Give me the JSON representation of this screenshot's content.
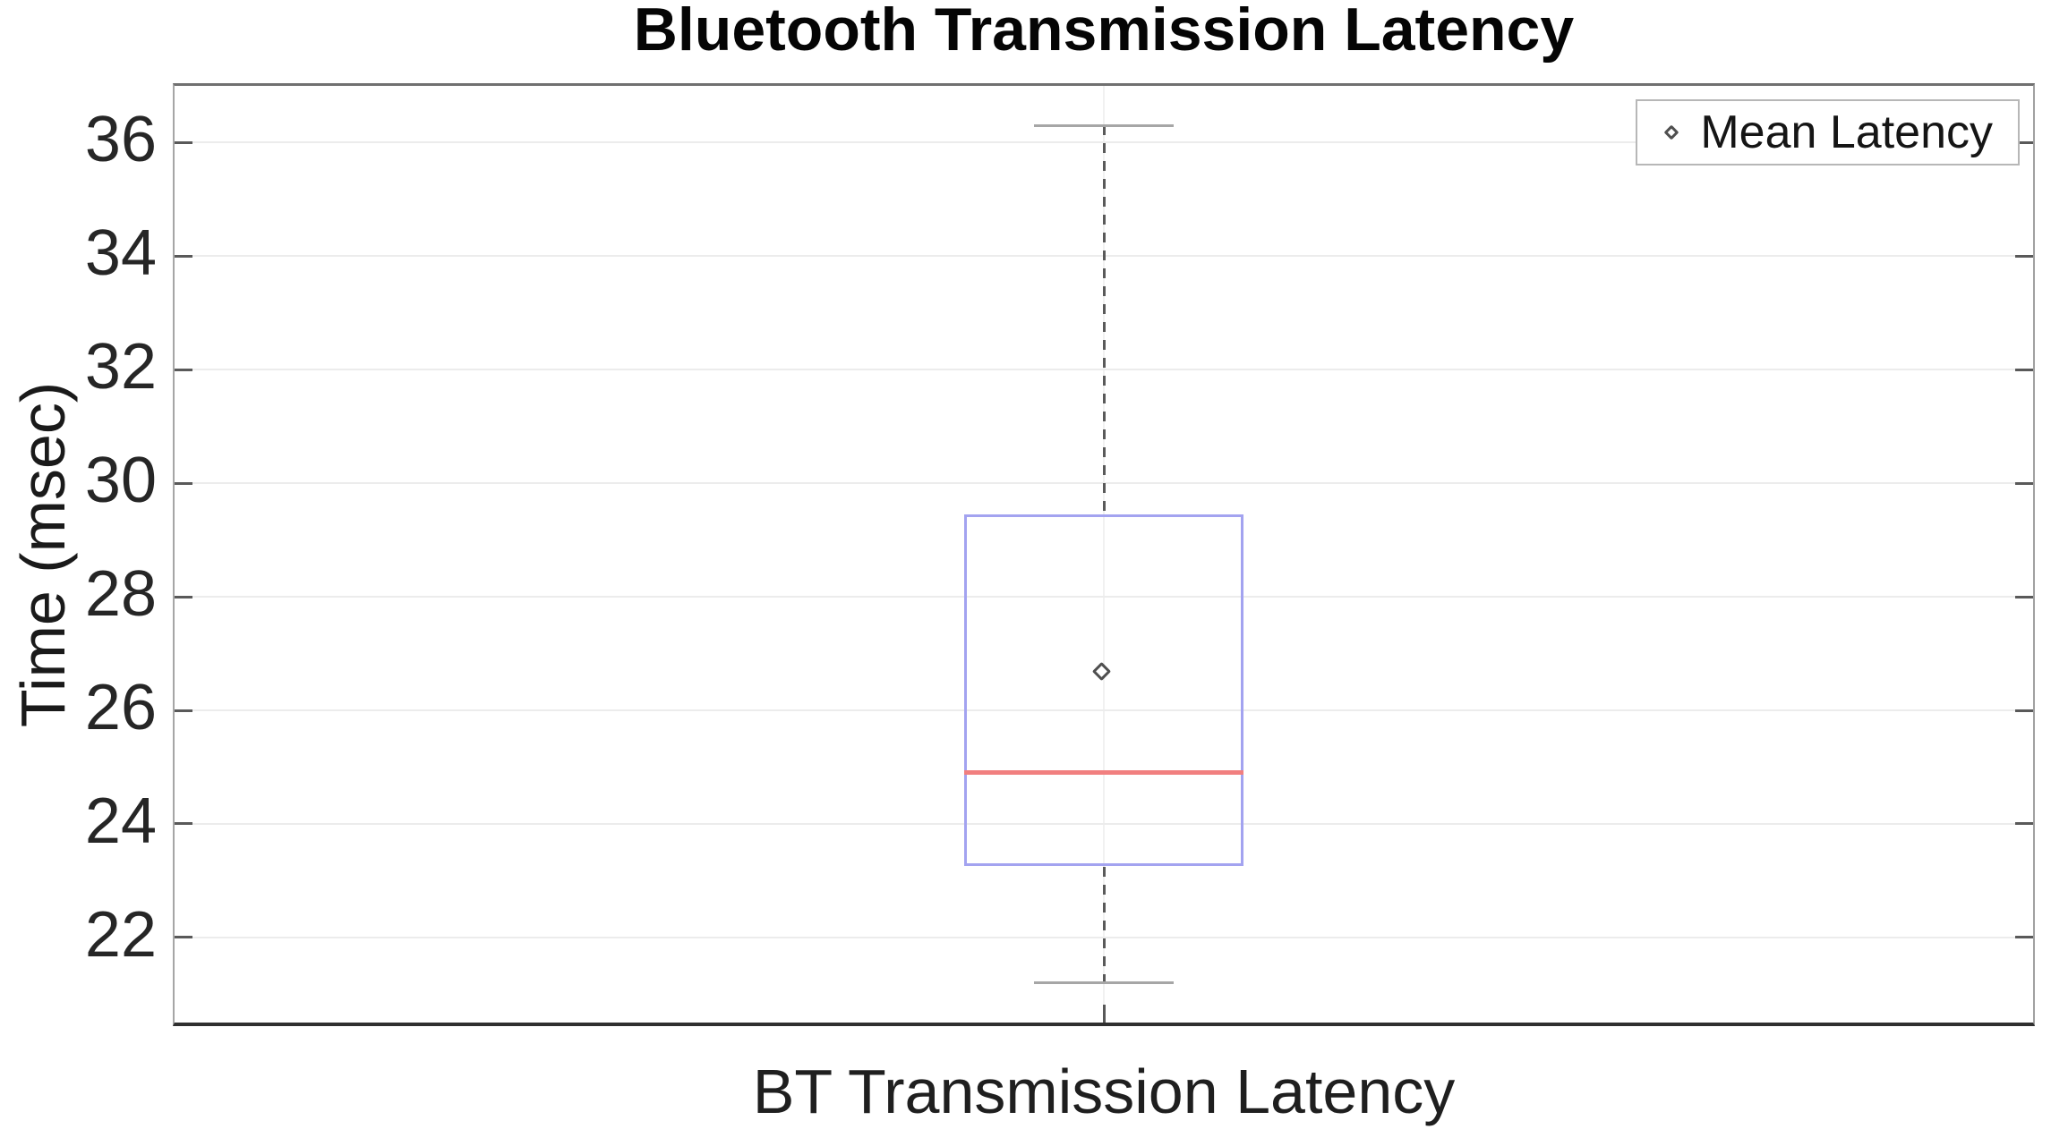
{
  "chart_data": {
    "type": "box",
    "title": "Bluetooth Transmission Latency",
    "ylabel": "Time (msec)",
    "xlabel": "",
    "categories": [
      "BT Transmission Latency"
    ],
    "yticks": [
      22,
      24,
      26,
      28,
      30,
      32,
      34,
      36
    ],
    "ylim": [
      20.5,
      37.0
    ],
    "grid": "horizontal gridlines at each y tick, one vertical gridline at category center, ticks inward on all sides",
    "legend": {
      "position": "top-right",
      "entries": [
        {
          "label": "Mean Latency",
          "marker": "open-diamond"
        }
      ]
    },
    "series": [
      {
        "name": "BT Transmission Latency",
        "whisker_low": 21.2,
        "q1": 23.25,
        "median": 24.9,
        "q3": 29.45,
        "whisker_high": 36.3,
        "mean": 26.65,
        "outliers": []
      }
    ],
    "colors": {
      "box": "#a3a3f0",
      "median": "#f17f7f",
      "whisker": "#5a5a5a",
      "cap": "#a6a6a6",
      "mean_marker_outline": "#4f4f4f",
      "grid": "#ececec",
      "axis_bottom": "#2f2f2f"
    }
  }
}
